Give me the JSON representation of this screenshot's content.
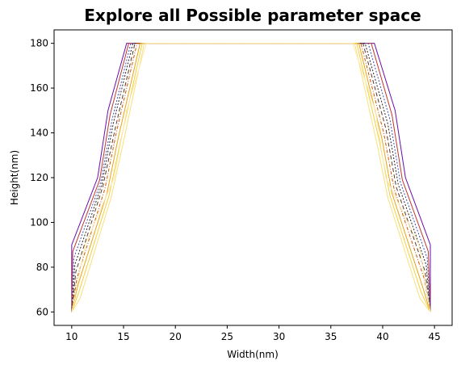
{
  "chart_data": {
    "type": "line",
    "title": "Explore all Possible parameter space",
    "xlabel": "Width(nm)",
    "ylabel": "Height(nm)",
    "xlim": [
      8.3,
      46.7
    ],
    "ylim": [
      54,
      186
    ],
    "xticks": [
      10,
      15,
      20,
      25,
      30,
      35,
      40,
      45
    ],
    "yticks": [
      60,
      80,
      100,
      120,
      140,
      160,
      180
    ],
    "grid": false,
    "legend": "none",
    "series": [
      {
        "color": "#6a0dad",
        "dash": "",
        "x": [
          10.0,
          10.0,
          12.5,
          13.5,
          15.3,
          39.2,
          41.2,
          42.2,
          44.6,
          44.6
        ],
        "y": [
          60,
          90,
          120,
          150,
          180,
          180,
          150,
          120,
          90,
          60
        ]
      },
      {
        "color": "#c0392b",
        "dash": "",
        "x": [
          10.0,
          10.1,
          12.7,
          13.7,
          15.5,
          38.9,
          40.9,
          41.9,
          44.4,
          44.6
        ],
        "y": [
          60,
          87,
          119,
          148,
          180,
          180,
          148,
          119,
          87,
          60
        ]
      },
      {
        "color": "#3b4cc0",
        "dash": "2,2",
        "x": [
          10.0,
          10.2,
          12.8,
          13.9,
          15.7,
          38.6,
          40.7,
          41.7,
          44.3,
          44.6
        ],
        "y": [
          60,
          84,
          118,
          146,
          180,
          180,
          146,
          118,
          84,
          60
        ]
      },
      {
        "color": "#222222",
        "dash": "2,2",
        "x": [
          10.0,
          10.3,
          12.9,
          14.0,
          15.9,
          38.3,
          40.5,
          41.5,
          44.2,
          44.6
        ],
        "y": [
          60,
          81,
          117,
          144,
          180,
          180,
          144,
          117,
          81,
          60
        ]
      },
      {
        "color": "#5b3a29",
        "dash": "5,3",
        "x": [
          10.0,
          10.4,
          13.0,
          14.2,
          16.1,
          38.1,
          40.3,
          41.3,
          44.1,
          44.6
        ],
        "y": [
          60,
          78,
          116,
          142,
          180,
          180,
          142,
          116,
          78,
          60
        ]
      },
      {
        "color": "#d35400",
        "dash": "4,2,1,2",
        "x": [
          10.0,
          10.5,
          13.2,
          14.3,
          16.3,
          37.9,
          40.1,
          41.1,
          44.0,
          44.6
        ],
        "y": [
          60,
          75,
          115,
          140,
          180,
          180,
          140,
          115,
          75,
          60
        ]
      },
      {
        "color": "#e8a317",
        "dash": "",
        "x": [
          10.0,
          10.6,
          13.4,
          14.5,
          16.6,
          37.7,
          39.9,
          40.9,
          43.8,
          44.6
        ],
        "y": [
          60,
          72,
          113,
          138,
          180,
          180,
          138,
          113,
          72,
          60
        ]
      },
      {
        "color": "#f4d03f",
        "dash": "",
        "x": [
          10.0,
          10.7,
          13.6,
          14.7,
          16.8,
          37.5,
          39.7,
          40.7,
          43.7,
          44.6
        ],
        "y": [
          60,
          69,
          112,
          136,
          180,
          180,
          136,
          112,
          69,
          60
        ]
      },
      {
        "color": "#f7e07a",
        "dash": "",
        "x": [
          10.0,
          10.8,
          13.8,
          14.9,
          17.0,
          37.3,
          39.5,
          40.5,
          43.6,
          44.6
        ],
        "y": [
          60,
          66,
          111,
          134,
          180,
          180,
          134,
          111,
          66,
          60
        ]
      },
      {
        "color": "#fbe9b0",
        "dash": "",
        "x": [
          10.0,
          11.3,
          14.1,
          15.3,
          17.2,
          37.1,
          39.3,
          40.3,
          43.5,
          44.6
        ],
        "y": [
          60,
          90,
          120,
          150,
          180,
          180,
          150,
          120,
          90,
          60
        ]
      }
    ]
  }
}
